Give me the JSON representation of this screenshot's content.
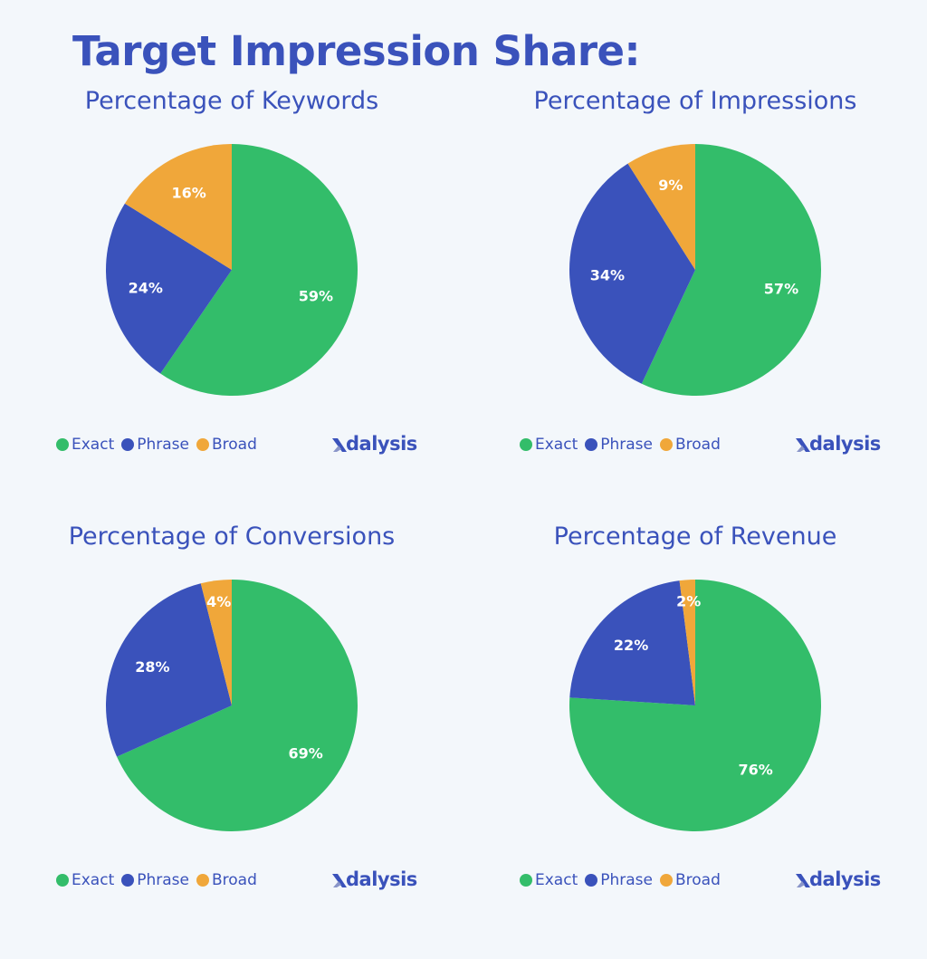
{
  "title": "Target Impression Share:",
  "colors": {
    "Exact": "#33bd6a",
    "Phrase": "#3a52bb",
    "Broad": "#f0a73a"
  },
  "legend": [
    {
      "name": "Exact",
      "color": "#33bd6a"
    },
    {
      "name": "Phrase",
      "color": "#3a52bb"
    },
    {
      "name": "Broad",
      "color": "#f0a73a"
    }
  ],
  "logo_text": "dalysis",
  "chart_data": [
    {
      "type": "pie",
      "title": "Percentage of Keywords",
      "categories": [
        "Exact",
        "Phrase",
        "Broad"
      ],
      "values": [
        59,
        24,
        16
      ],
      "labels": [
        "59%",
        "24%",
        "16%"
      ],
      "legend_position": "bottom-left"
    },
    {
      "type": "pie",
      "title": "Percentage of Impressions",
      "categories": [
        "Exact",
        "Phrase",
        "Broad"
      ],
      "values": [
        57,
        34,
        9
      ],
      "labels": [
        "57%",
        "34%",
        "9%"
      ],
      "legend_position": "bottom-left"
    },
    {
      "type": "pie",
      "title": "Percentage of Conversions",
      "categories": [
        "Exact",
        "Phrase",
        "Broad"
      ],
      "values": [
        69,
        28,
        4
      ],
      "labels": [
        "69%",
        "28%",
        "4%"
      ],
      "legend_position": "bottom-left"
    },
    {
      "type": "pie",
      "title": "Percentage of Revenue",
      "categories": [
        "Exact",
        "Phrase",
        "Broad"
      ],
      "values": [
        76,
        22,
        2
      ],
      "labels": [
        "76%",
        "22%",
        "2%"
      ],
      "legend_position": "bottom-left"
    }
  ]
}
